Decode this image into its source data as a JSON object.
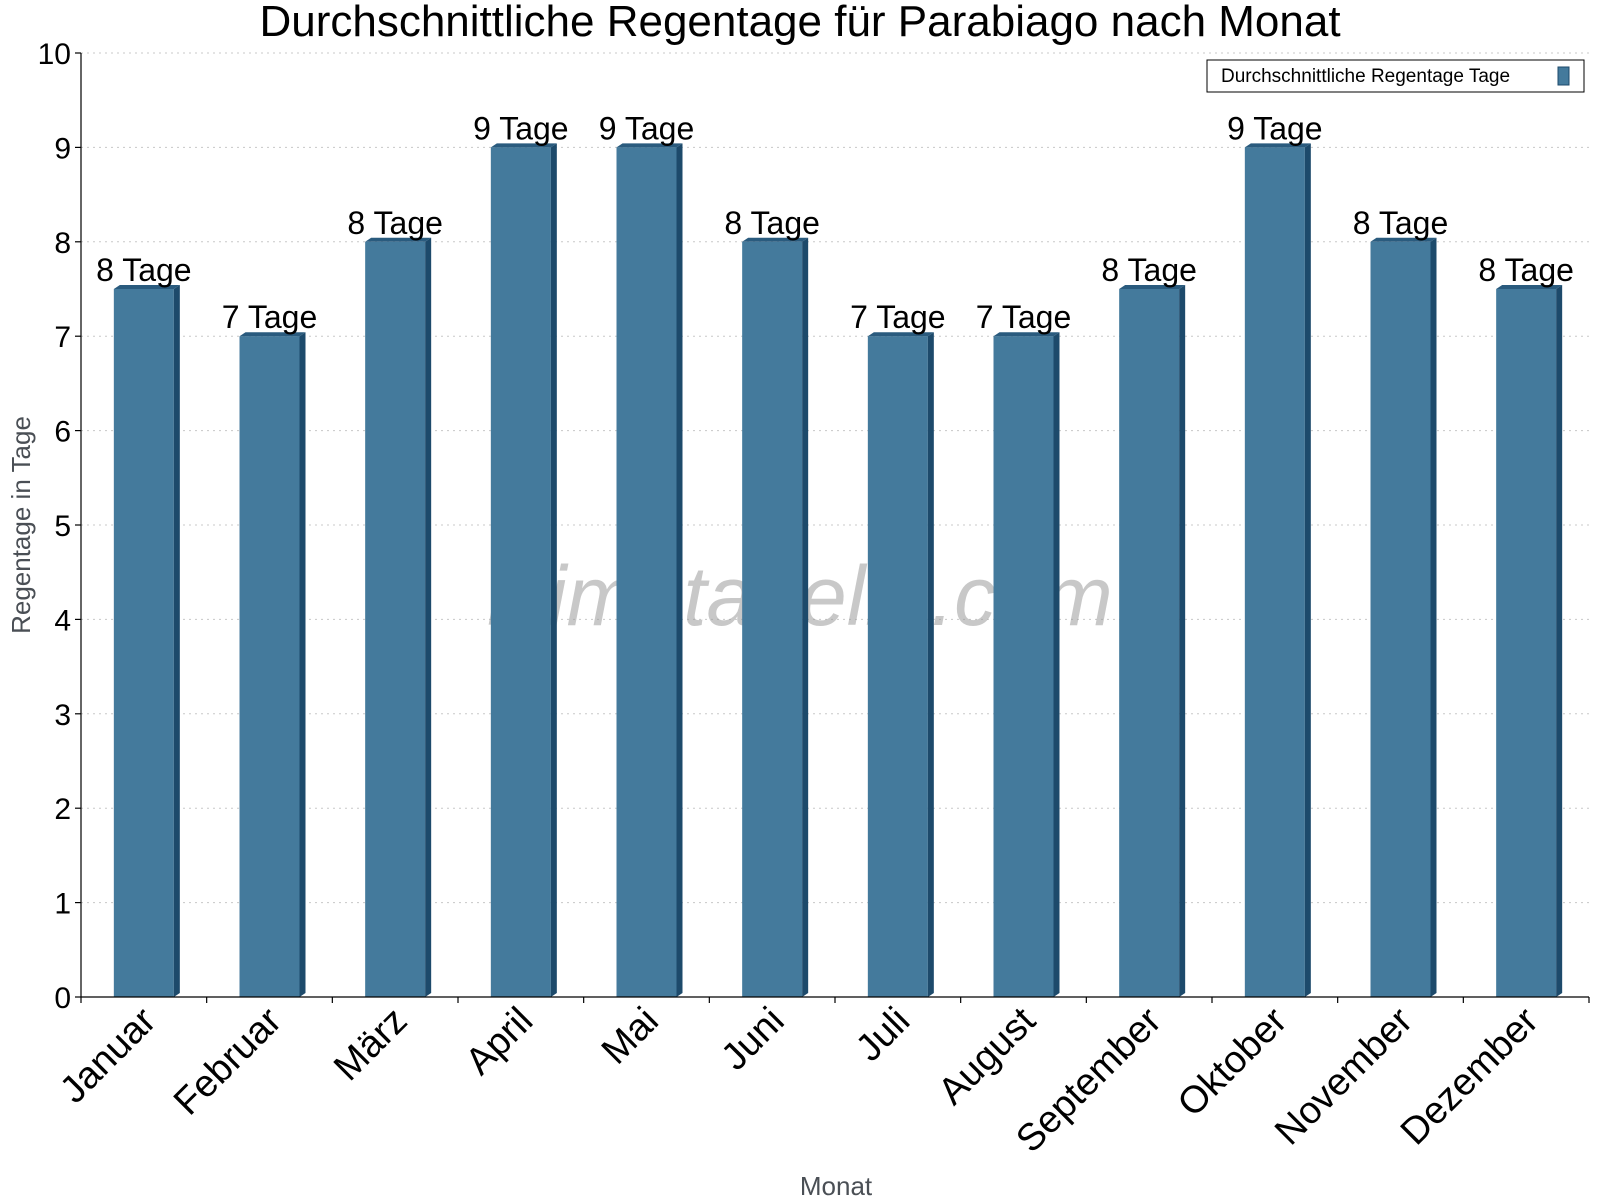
{
  "chart_data": {
    "type": "bar",
    "title": "Durchschnittliche Regentage für Parabiago nach Monat",
    "xlabel": "Monat",
    "ylabel": "Regentage in Tage",
    "categories": [
      "Januar",
      "Februar",
      "März",
      "April",
      "Mai",
      "Juni",
      "Juli",
      "August",
      "September",
      "Oktober",
      "November",
      "Dezember"
    ],
    "series": [
      {
        "name": "Durchschnittliche Regentage Tage",
        "values": [
          7.5,
          7,
          8,
          9,
          9,
          8,
          7,
          7,
          7.5,
          9,
          8,
          7.5
        ],
        "data_labels": [
          "8 Tage",
          "7 Tage",
          "8 Tage",
          "9 Tage",
          "9 Tage",
          "8 Tage",
          "7 Tage",
          "7 Tage",
          "8 Tage",
          "9 Tage",
          "8 Tage",
          "8 Tage"
        ]
      }
    ],
    "ylim": [
      0,
      10
    ],
    "yticks": [
      "0",
      "1",
      "2",
      "3",
      "4",
      "5",
      "6",
      "7",
      "8",
      "9",
      "10"
    ],
    "grid": true,
    "legend_position": "top-right",
    "colors": {
      "bar": "#447a9c",
      "bar_side": "#1d4a6b",
      "bar_top": "#2a5b7e"
    }
  },
  "watermark": "klimatabelle.com"
}
